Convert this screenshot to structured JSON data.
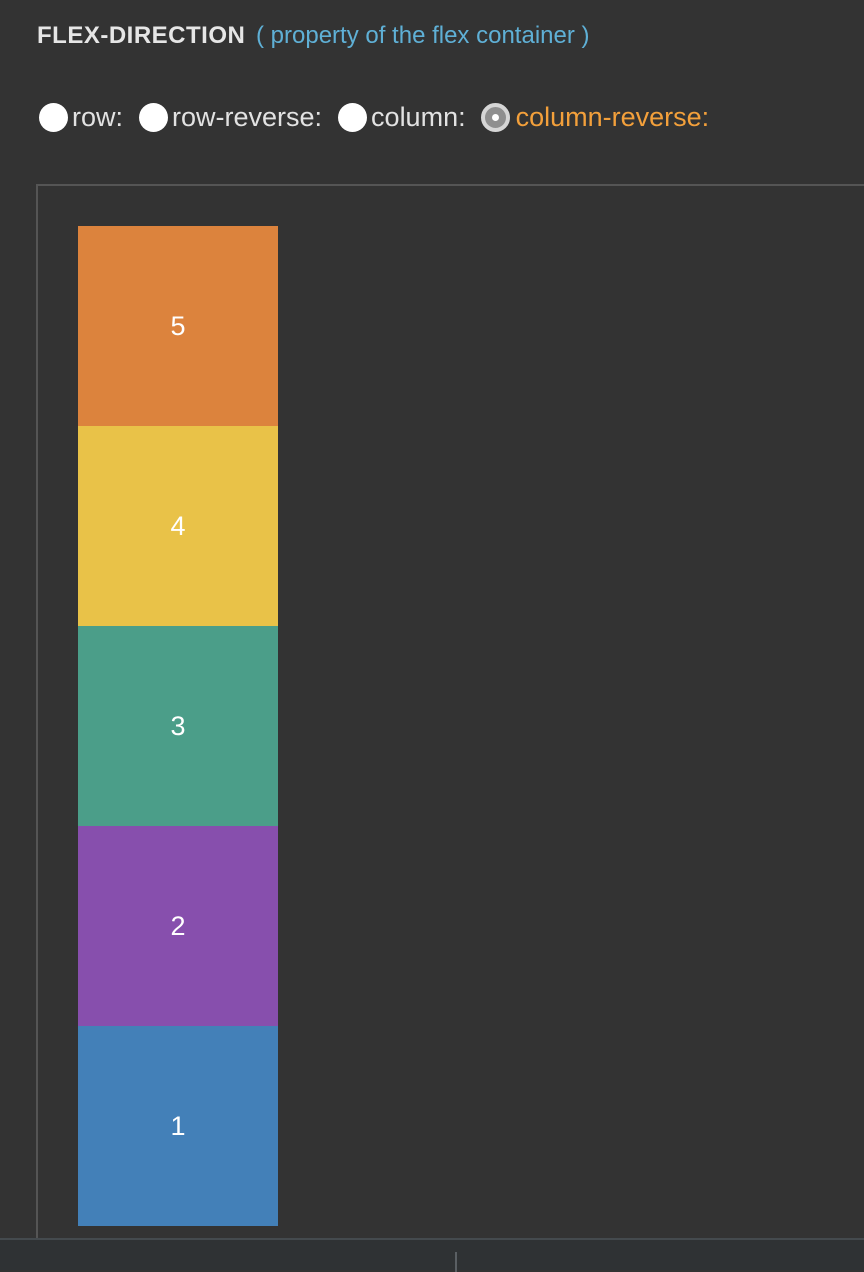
{
  "header": {
    "property": "FLEX-DIRECTION",
    "note": "( property of the flex container )"
  },
  "options": [
    {
      "label": "row:",
      "checked": false
    },
    {
      "label": "row-reverse:",
      "checked": false
    },
    {
      "label": "column:",
      "checked": false
    },
    {
      "label": "column-reverse:",
      "checked": true
    }
  ],
  "flex_items": [
    {
      "label": "1",
      "color": "#4380b8"
    },
    {
      "label": "2",
      "color": "#874fad"
    },
    {
      "label": "3",
      "color": "#4b9e89"
    },
    {
      "label": "4",
      "color": "#e9c248"
    },
    {
      "label": "5",
      "color": "#dc833d"
    }
  ],
  "colors": {
    "background": "#333333",
    "accent_selected": "#f3a03b",
    "note": "#5fb0d6"
  }
}
